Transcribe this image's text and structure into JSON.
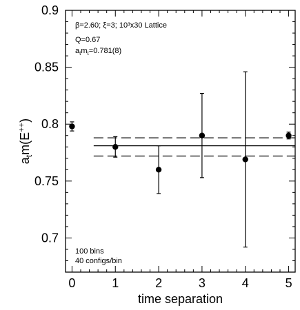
{
  "chart_data": {
    "type": "scatter",
    "xlabel": "time separation",
    "ylabel": "a_t m(E^{++})",
    "xlim": [
      -0.15,
      5.15
    ],
    "ylim": [
      0.67,
      0.9
    ],
    "x_ticks": [
      "0",
      "1",
      "2",
      "3",
      "4",
      "5"
    ],
    "y_ticks": [
      "0.7",
      "0.75",
      "0.8",
      "0.85",
      "0.9"
    ],
    "grid": false,
    "points": [
      {
        "x": 0,
        "y": 0.798,
        "err": 0.004
      },
      {
        "x": 1,
        "y": 0.78,
        "err": 0.009
      },
      {
        "x": 2,
        "y": 0.76,
        "err": 0.021
      },
      {
        "x": 3,
        "y": 0.79,
        "err": 0.037
      },
      {
        "x": 4,
        "y": 0.769,
        "err": 0.077
      },
      {
        "x": 5,
        "y": 0.79,
        "err": 0.003
      }
    ],
    "fit": {
      "x_start": 0.5,
      "x_end": 5.15,
      "value": 0.781,
      "band": [
        0.772,
        0.788
      ]
    },
    "annotations": {
      "line1": "β=2.60; ξ=3; 10³x30 Lattice",
      "line2": "Q=0.67",
      "line3_main": "a",
      "line3_sub1": "t",
      "line3_mid": "m",
      "line3_sub2": "t",
      "line3_end": "=0.781(8)",
      "bottom1": "100 bins",
      "bottom2": "40 configs/bin"
    },
    "ylabel_parts": {
      "a": "a",
      "sub": "t",
      "m": "m(E",
      "sup": "++",
      "close": ")"
    }
  }
}
